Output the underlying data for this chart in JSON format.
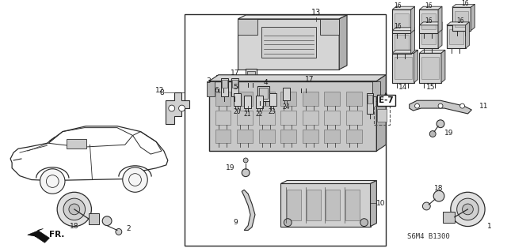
{
  "bg_color": "#ffffff",
  "line_color": "#2a2a2a",
  "label_color": "#1a1a1a",
  "ref_code": "S6M4 B1300",
  "e7_label": "E-7"
}
